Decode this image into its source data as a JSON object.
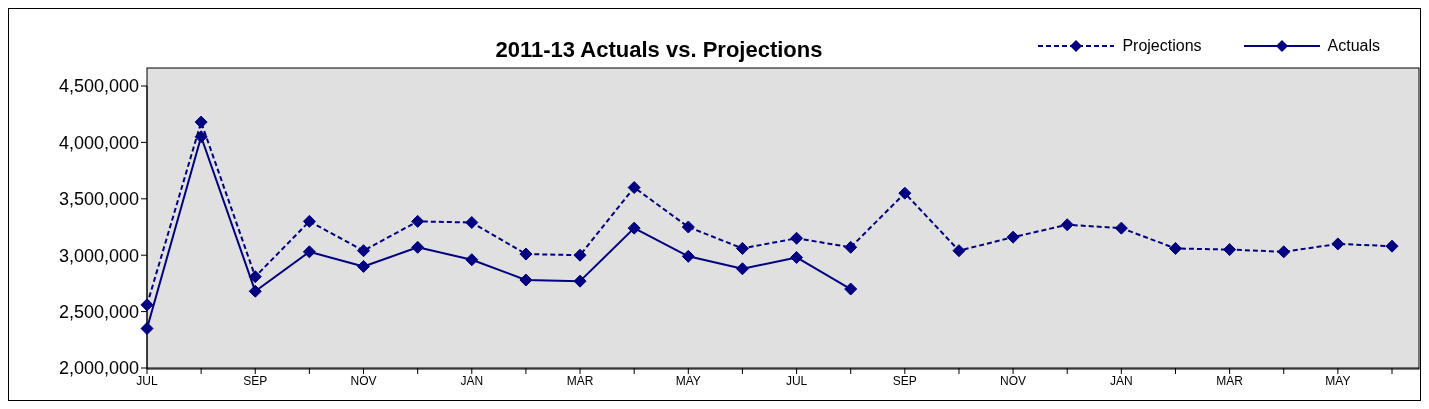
{
  "chart_data": {
    "type": "line",
    "title": "2011-13 Actuals vs. Projections",
    "categories": [
      "JUL",
      null,
      "SEP",
      null,
      "NOV",
      null,
      "JAN",
      null,
      "MAR",
      null,
      "MAY",
      null,
      "JUL",
      null,
      "SEP",
      null,
      "NOV",
      null,
      "JAN",
      null,
      "MAR",
      null,
      "MAY",
      null
    ],
    "series": [
      {
        "name": "Projections",
        "color": "#000080",
        "line_style": "dashed",
        "values": [
          2560000,
          4180000,
          2810000,
          3300000,
          3040000,
          3300000,
          3290000,
          3010000,
          3000000,
          3600000,
          3250000,
          3060000,
          3150000,
          3070000,
          3550000,
          3040000,
          3160000,
          3270000,
          3240000,
          3060000,
          3050000,
          3030000,
          3100000,
          3080000
        ]
      },
      {
        "name": "Actuals",
        "color": "#000080",
        "line_style": "solid",
        "values": [
          2350000,
          4050000,
          2680000,
          3030000,
          2900000,
          3070000,
          2960000,
          2780000,
          2770000,
          3240000,
          2990000,
          2880000,
          2980000,
          2700000,
          null,
          null,
          null,
          null,
          null,
          null,
          null,
          null,
          null,
          null
        ]
      }
    ],
    "ylim": [
      2000000,
      4500000
    ],
    "yticks": [
      {
        "value": 2000000,
        "label": "2,000,000"
      },
      {
        "value": 2500000,
        "label": "2,500,000"
      },
      {
        "value": 3000000,
        "label": "3,000,000"
      },
      {
        "value": 3500000,
        "label": "3,500,000"
      },
      {
        "value": 4000000,
        "label": "4,000,000"
      },
      {
        "value": 4500000,
        "label": "4,500,000"
      }
    ],
    "grid": false,
    "legend": "top right",
    "marker": "diamond"
  }
}
